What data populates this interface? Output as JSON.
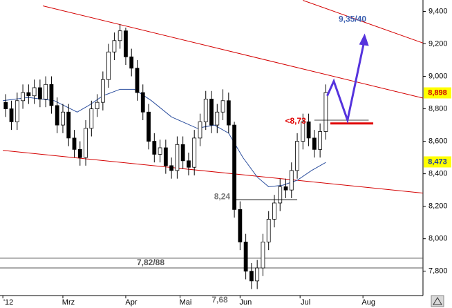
{
  "chart_data": {
    "type": "candlestick",
    "xlim": [
      0,
      148
    ],
    "ylim": [
      7.65,
      9.47
    ],
    "xticks": [
      {
        "value": 1,
        "label": "'12"
      },
      {
        "value": 22,
        "label": "Mrz"
      },
      {
        "value": 44,
        "label": "Apr"
      },
      {
        "value": 63,
        "label": "Mai"
      },
      {
        "value": 84,
        "label": "Jun"
      },
      {
        "value": 105,
        "label": "Jul"
      },
      {
        "value": 127,
        "label": "Aug"
      }
    ],
    "yticks": [
      {
        "value": 7.8,
        "label": "7,800"
      },
      {
        "value": 8.0,
        "label": "8,000"
      },
      {
        "value": 8.2,
        "label": "8,200"
      },
      {
        "value": 8.4,
        "label": "8,400"
      },
      {
        "value": 8.6,
        "label": "8,600"
      },
      {
        "value": 8.8,
        "label": "8,800"
      },
      {
        "value": 9.0,
        "label": "9,000"
      },
      {
        "value": 9.2,
        "label": "9,200"
      },
      {
        "value": 9.4,
        "label": "9,400"
      }
    ],
    "up_color": "#ffffff",
    "down_color": "#000000",
    "x": [
      2,
      4,
      6,
      8,
      10,
      12,
      14,
      16,
      18,
      20,
      22,
      24,
      26,
      28,
      30,
      32,
      34,
      36,
      38,
      40,
      42,
      44,
      46,
      48,
      50,
      52,
      54,
      56,
      58,
      60,
      62,
      64,
      66,
      68,
      70,
      72,
      74,
      76,
      78,
      80,
      82,
      84,
      86,
      88,
      90,
      92,
      94,
      96,
      98,
      100,
      102,
      104,
      106,
      108,
      110,
      112,
      114
    ],
    "open": [
      8.84,
      8.8,
      8.72,
      8.85,
      8.9,
      8.88,
      8.93,
      8.86,
      8.95,
      8.82,
      8.7,
      8.78,
      8.62,
      8.55,
      8.5,
      8.68,
      8.8,
      8.84,
      8.98,
      9.15,
      9.22,
      9.28,
      9.12,
      9.05,
      8.9,
      8.78,
      8.6,
      8.52,
      8.56,
      8.45,
      8.42,
      8.58,
      8.48,
      8.44,
      8.62,
      8.72,
      8.86,
      8.7,
      8.78,
      8.85,
      8.7,
      8.18,
      7.98,
      7.8,
      7.74,
      7.82,
      7.98,
      8.12,
      8.22,
      8.32,
      8.3,
      8.42,
      8.6,
      8.72,
      8.62,
      8.55,
      8.66
    ],
    "high": [
      8.89,
      8.85,
      8.9,
      8.95,
      8.95,
      8.98,
      8.98,
      9.0,
      9.0,
      8.87,
      8.83,
      8.83,
      8.67,
      8.6,
      8.73,
      8.85,
      8.89,
      9.03,
      9.2,
      9.27,
      9.32,
      9.3,
      9.17,
      9.1,
      8.95,
      8.83,
      8.65,
      8.61,
      8.61,
      8.5,
      8.63,
      8.63,
      8.53,
      8.67,
      8.77,
      8.91,
      8.91,
      8.83,
      8.92,
      8.9,
      8.72,
      8.23,
      8.03,
      7.85,
      7.87,
      8.03,
      8.17,
      8.27,
      8.37,
      8.37,
      8.47,
      8.65,
      8.77,
      8.77,
      8.67,
      8.71,
      8.95
    ],
    "low": [
      8.75,
      8.67,
      8.67,
      8.8,
      8.83,
      8.83,
      8.81,
      8.81,
      8.77,
      8.65,
      8.65,
      8.57,
      8.5,
      8.45,
      8.45,
      8.63,
      8.75,
      8.79,
      8.93,
      9.1,
      9.17,
      9.07,
      9.0,
      8.85,
      8.73,
      8.55,
      8.47,
      8.47,
      8.4,
      8.37,
      8.37,
      8.43,
      8.39,
      8.39,
      8.57,
      8.67,
      8.65,
      8.65,
      8.73,
      8.65,
      8.13,
      7.93,
      7.75,
      7.69,
      7.69,
      7.77,
      7.93,
      8.07,
      8.17,
      8.25,
      8.25,
      8.37,
      8.55,
      8.57,
      8.5,
      8.5,
      8.61
    ],
    "close": [
      8.8,
      8.72,
      8.85,
      8.9,
      8.88,
      8.93,
      8.86,
      8.95,
      8.82,
      8.7,
      8.78,
      8.62,
      8.55,
      8.5,
      8.68,
      8.8,
      8.84,
      8.98,
      9.15,
      9.22,
      9.28,
      9.12,
      9.05,
      8.9,
      8.78,
      8.6,
      8.52,
      8.56,
      8.45,
      8.42,
      8.58,
      8.48,
      8.44,
      8.62,
      8.72,
      8.86,
      8.7,
      8.78,
      8.85,
      8.7,
      8.18,
      7.98,
      7.8,
      7.74,
      7.82,
      7.98,
      8.12,
      8.22,
      8.32,
      8.3,
      8.42,
      8.6,
      8.72,
      8.62,
      8.55,
      8.66,
      8.9
    ],
    "moving_average": {
      "color": "#2b4e9e",
      "x": [
        1,
        10,
        19,
        27,
        31,
        36,
        42,
        47,
        53,
        60,
        69,
        75,
        80,
        85,
        90,
        94,
        99,
        104,
        109,
        114
      ],
      "values": [
        8.85,
        8.87,
        8.85,
        8.78,
        8.82,
        8.88,
        8.92,
        8.92,
        8.85,
        8.75,
        8.68,
        8.7,
        8.65,
        8.5,
        8.38,
        8.32,
        8.33,
        8.36,
        8.42,
        8.47
      ]
    },
    "trend_lines": [
      {
        "color": "#d40000",
        "x": [
          15,
          148
        ],
        "values": [
          9.434,
          8.866
        ]
      },
      {
        "color": "#d40000",
        "x": [
          1,
          148
        ],
        "values": [
          8.544,
          8.281
        ]
      },
      {
        "color": "#d40000",
        "x": [
          106,
          148
        ],
        "values": [
          9.468,
          9.205
        ]
      }
    ],
    "gap_level": {
      "label": "8,24",
      "value": 8.24,
      "x": [
        82,
        104
      ],
      "color": "#000000"
    },
    "resistance": {
      "label": "<8,73",
      "value": 8.73,
      "x": [
        110,
        129
      ],
      "color": "#000000",
      "label_color": "#e00000"
    },
    "support": {
      "value": 8.71,
      "x": [
        115.6,
        130.6
      ],
      "color": "#e00000"
    },
    "zone": {
      "label": "7,82/88",
      "values": [
        7.82,
        7.88
      ],
      "color": "#555555"
    },
    "low_label": {
      "label": "7,68",
      "value": 7.68
    },
    "target": {
      "label": "9,35/40",
      "value": 9.35,
      "color": "#3a5fb0"
    },
    "arrow": {
      "color": "#5533dd",
      "x": [
        114.5,
        116.8,
        121.6,
        127.6
      ],
      "values": [
        8.88,
        8.97,
        8.73,
        9.23
      ]
    },
    "price_tags": [
      {
        "label": "8,898",
        "value": 8.898,
        "color": "#cc0000"
      },
      {
        "label": "8,473",
        "value": 8.473,
        "color": "#1a3fa0"
      }
    ]
  }
}
